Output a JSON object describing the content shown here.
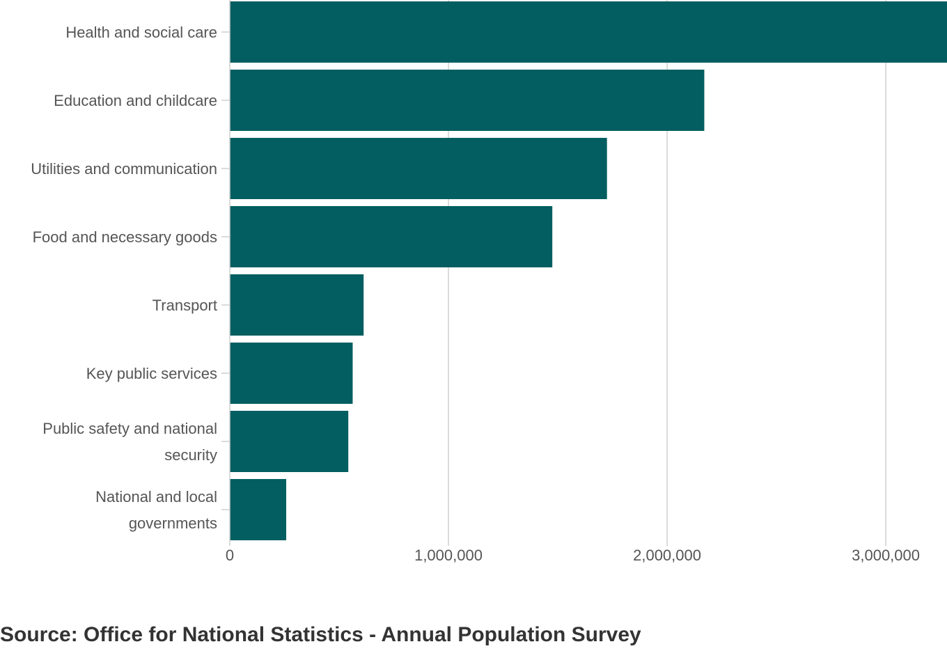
{
  "chart_data": {
    "type": "bar",
    "orientation": "horizontal",
    "categories": [
      "Health and social care",
      "Education and childcare",
      "Utilities and communication",
      "Food and necessary goods",
      "Transport",
      "Key public services",
      "Public safety and national security",
      "National and local governments"
    ],
    "category_label_lines": [
      [
        "Health and social care"
      ],
      [
        "Education and childcare"
      ],
      [
        "Utilities and communication"
      ],
      [
        "Food and necessary goods"
      ],
      [
        "Transport"
      ],
      [
        "Key public services"
      ],
      [
        "Public safety and national",
        "security"
      ],
      [
        "National and local",
        "governments"
      ]
    ],
    "values": [
      3290000,
      2170000,
      1725000,
      1475000,
      612000,
      562000,
      542000,
      258000
    ],
    "xlim": [
      0,
      3280000
    ],
    "x_ticks": [
      0,
      1000000,
      2000000,
      3000000
    ],
    "x_tick_labels": [
      "0",
      "1,000,000",
      "2,000,000",
      "3,000,000"
    ],
    "grid": "vertical",
    "bar_color": "#025e60",
    "title": "",
    "xlabel": "",
    "ylabel": ""
  },
  "footer": {
    "source": "Source: Office for National Statistics - Annual Population Survey"
  }
}
